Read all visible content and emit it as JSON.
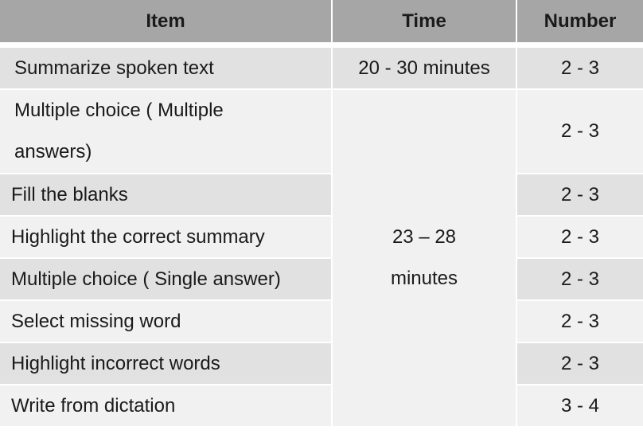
{
  "headers": {
    "item": "Item",
    "time": "Time",
    "number": "Number"
  },
  "rows": [
    {
      "item": "Summarize spoken text",
      "time": "20 - 30 minutes",
      "number": "2 - 3"
    },
    {
      "item": "Multiple choice ( Multiple answers)",
      "number": "2 - 3"
    },
    {
      "item": "Fill the blanks",
      "number": "2 - 3"
    },
    {
      "item": "Highlight the correct summary",
      "number": "2 - 3"
    },
    {
      "item": "Multiple choice ( Single answer)",
      "number": "2 - 3"
    },
    {
      "item": "Select missing word",
      "number": "2 - 3"
    },
    {
      "item": "Highlight incorrect words",
      "number": "2 - 3"
    },
    {
      "item": "Write from dictation",
      "number": "3 - 4"
    }
  ],
  "merged_time": {
    "line1": "23 – 28",
    "line2": "minutes"
  }
}
